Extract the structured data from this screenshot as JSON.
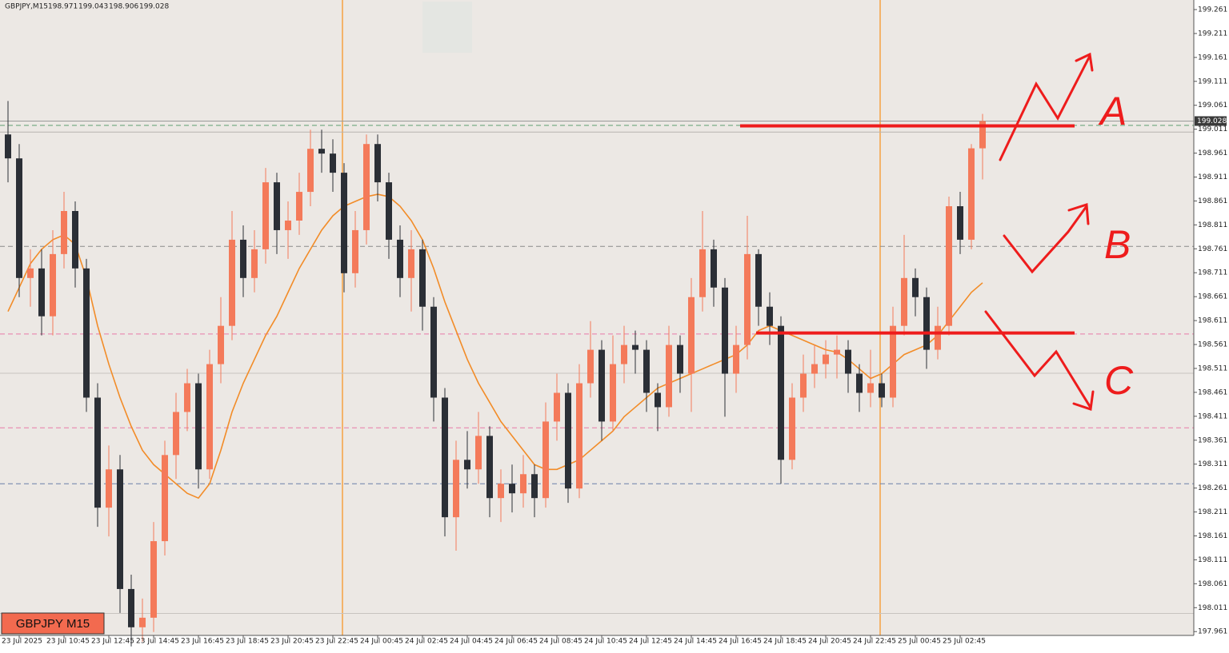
{
  "chart_data": {
    "type": "candlestick",
    "symbol": "GBPJPY,M15",
    "label": "GBPJPY M15",
    "bull_color": "#f47a5a",
    "bear_color": "#2b2f36",
    "categories": [
      null,
      "23 Jul 2025",
      null,
      null,
      null,
      "23 Jul 10:45",
      null,
      null,
      null,
      "23 Jul 12:45",
      null,
      null,
      null,
      "23 Jul 14:45",
      null,
      null,
      null,
      "23 Jul 16:45",
      null,
      null,
      null,
      "23 Jul 18:45",
      null,
      null,
      null,
      "23 Jul 20:45",
      null,
      null,
      null,
      "23 Jul 22:45",
      null,
      null,
      null,
      "24 Jul 00:45",
      null,
      null,
      null,
      "24 Jul 02:45",
      null,
      null,
      null,
      "24 Jul 04:45",
      null,
      null,
      null,
      "24 Jul 06:45",
      null,
      null,
      null,
      "24 Jul 08:45",
      null,
      null,
      null,
      "24 Jul 10:45",
      null,
      null,
      null,
      "24 Jul 12:45",
      null,
      null,
      null,
      "24 Jul 14:45",
      null,
      null,
      null,
      "24 Jul 16:45",
      null,
      null,
      null,
      "24 Jul 18:45",
      null,
      null,
      null,
      "24 Jul 20:45",
      null,
      null,
      null,
      "24 Jul 22:45",
      null,
      null,
      null,
      "25 Jul 00:45",
      null,
      null,
      null,
      "25 Jul 02:45",
      null,
      null
    ],
    "open": [
      199.0,
      198.95,
      198.7,
      198.72,
      198.62,
      198.75,
      198.84,
      198.72,
      198.45,
      198.22,
      198.3,
      198.05,
      197.97,
      197.99,
      198.15,
      198.33,
      198.42,
      198.48,
      198.3,
      198.52,
      198.6,
      198.78,
      198.7,
      198.76,
      198.9,
      198.8,
      198.82,
      198.88,
      198.97,
      198.96,
      198.92,
      198.71,
      198.8,
      198.98,
      198.9,
      198.78,
      198.7,
      198.76,
      198.64,
      198.45,
      198.2,
      198.32,
      198.3,
      198.37,
      198.24,
      198.27,
      198.25,
      198.29,
      198.24,
      198.4,
      198.46,
      198.26,
      198.48,
      198.55,
      198.4,
      198.52,
      198.56,
      198.55,
      198.46,
      198.43,
      198.56,
      198.5,
      198.66,
      198.76,
      198.68,
      198.5,
      198.56,
      198.75,
      198.64,
      198.6,
      198.32,
      198.45,
      198.5,
      198.52,
      198.54,
      198.55,
      198.5,
      198.46,
      198.48,
      198.45,
      198.6,
      198.7,
      198.66,
      198.55,
      198.6,
      198.85,
      198.78,
      198.971
    ],
    "high": [
      199.07,
      198.98,
      198.76,
      198.76,
      198.8,
      198.88,
      198.86,
      198.74,
      198.48,
      198.35,
      198.33,
      198.08,
      198.03,
      198.19,
      198.36,
      198.46,
      198.51,
      198.5,
      198.55,
      198.66,
      198.84,
      198.81,
      198.8,
      198.93,
      198.92,
      198.86,
      198.92,
      199.01,
      199.01,
      198.99,
      198.94,
      198.84,
      199.0,
      199.0,
      198.92,
      198.81,
      198.8,
      198.78,
      198.66,
      198.47,
      198.36,
      198.38,
      198.42,
      198.39,
      198.3,
      198.31,
      198.33,
      198.31,
      198.44,
      198.5,
      198.48,
      198.52,
      198.61,
      198.57,
      198.58,
      198.6,
      198.59,
      198.57,
      198.48,
      198.6,
      198.58,
      198.7,
      198.84,
      198.78,
      198.7,
      198.6,
      198.83,
      198.76,
      198.67,
      198.62,
      198.48,
      198.54,
      198.56,
      198.57,
      198.58,
      198.57,
      198.52,
      198.55,
      198.5,
      198.64,
      198.79,
      198.72,
      198.68,
      198.64,
      198.87,
      198.88,
      198.98,
      199.043
    ],
    "low": [
      198.9,
      198.66,
      198.64,
      198.58,
      198.58,
      198.72,
      198.68,
      198.42,
      198.18,
      198.16,
      198.0,
      197.93,
      197.94,
      197.96,
      198.12,
      198.28,
      198.38,
      198.26,
      198.28,
      198.48,
      198.57,
      198.66,
      198.67,
      198.73,
      198.75,
      198.74,
      198.79,
      198.85,
      198.92,
      198.88,
      198.67,
      198.68,
      198.77,
      198.86,
      198.74,
      198.66,
      198.63,
      198.59,
      198.4,
      198.16,
      198.13,
      198.26,
      198.27,
      198.2,
      198.19,
      198.21,
      198.22,
      198.2,
      198.22,
      198.36,
      198.23,
      198.24,
      198.45,
      198.36,
      198.38,
      198.48,
      198.5,
      198.42,
      198.38,
      198.41,
      198.46,
      198.42,
      198.63,
      198.64,
      198.41,
      198.46,
      198.53,
      198.6,
      198.56,
      198.27,
      198.3,
      198.42,
      198.47,
      198.49,
      198.49,
      198.46,
      198.42,
      198.43,
      198.43,
      198.43,
      198.58,
      198.62,
      198.51,
      198.53,
      198.58,
      198.75,
      198.76,
      198.906
    ],
    "close": [
      198.95,
      198.7,
      198.72,
      198.62,
      198.75,
      198.84,
      198.72,
      198.45,
      198.22,
      198.3,
      198.05,
      197.97,
      197.99,
      198.15,
      198.33,
      198.42,
      198.48,
      198.3,
      198.52,
      198.6,
      198.78,
      198.7,
      198.76,
      198.9,
      198.8,
      198.82,
      198.88,
      198.97,
      198.96,
      198.92,
      198.71,
      198.8,
      198.98,
      198.9,
      198.78,
      198.7,
      198.76,
      198.64,
      198.45,
      198.2,
      198.32,
      198.3,
      198.37,
      198.24,
      198.27,
      198.25,
      198.29,
      198.24,
      198.4,
      198.46,
      198.26,
      198.48,
      198.55,
      198.4,
      198.52,
      198.56,
      198.55,
      198.46,
      198.43,
      198.56,
      198.5,
      198.66,
      198.76,
      198.68,
      198.5,
      198.56,
      198.75,
      198.64,
      198.6,
      198.32,
      198.45,
      198.5,
      198.52,
      198.54,
      198.55,
      198.5,
      198.46,
      198.48,
      198.45,
      198.6,
      198.7,
      198.66,
      198.55,
      198.6,
      198.85,
      198.78,
      198.971,
      199.028
    ],
    "overlays": [
      {
        "color": "#f28c28",
        "values": [
          198.63,
          198.68,
          198.73,
          198.76,
          198.78,
          198.79,
          198.77,
          198.7,
          198.6,
          198.52,
          198.45,
          198.39,
          198.34,
          198.31,
          198.29,
          198.27,
          198.25,
          198.24,
          198.27,
          198.34,
          198.42,
          198.48,
          198.53,
          198.58,
          198.62,
          198.67,
          198.72,
          198.76,
          198.8,
          198.83,
          198.85,
          198.86,
          198.87,
          198.875,
          198.87,
          198.85,
          198.82,
          198.78,
          198.72,
          198.65,
          198.59,
          198.53,
          198.48,
          198.44,
          198.4,
          198.37,
          198.34,
          198.31,
          198.3,
          198.3,
          198.31,
          198.32,
          198.34,
          198.36,
          198.38,
          198.41,
          198.43,
          198.45,
          198.47,
          198.48,
          198.49,
          198.5,
          198.51,
          198.52,
          198.53,
          198.54,
          198.56,
          198.59,
          198.6,
          198.59,
          198.58,
          198.57,
          198.56,
          198.55,
          198.545,
          198.53,
          198.51,
          198.49,
          198.5,
          198.52,
          198.54,
          198.55,
          198.56,
          198.58,
          198.61,
          198.64,
          198.67,
          198.69
        ]
      }
    ],
    "levels": [
      {
        "value": 199.019,
        "color": "#5e9e72",
        "style": "dashed"
      },
      {
        "value": 199.005,
        "color": "#b8b4b0",
        "style": "solid"
      },
      {
        "value": 198.766,
        "color": "#8a8a8a",
        "style": "dashed"
      },
      {
        "value": 198.583,
        "color": "#e87aa8",
        "style": "dashed"
      },
      {
        "value": 198.501,
        "color": "#c8c4c0",
        "style": "solid"
      },
      {
        "value": 198.387,
        "color": "#e87aa8",
        "style": "dashed"
      },
      {
        "value": 198.27,
        "color": "#6a7fa8",
        "style": "dashed"
      },
      {
        "value": 197.999,
        "color": "#c8c4c0",
        "style": "solid"
      }
    ],
    "marker_levels": [
      199.018,
      198.585
    ],
    "scenario_labels": [
      "A",
      "B",
      "C"
    ],
    "ylim": [
      197.953,
      199.281
    ],
    "yticks": [
      199.261,
      199.211,
      199.161,
      199.111,
      199.061,
      199.011,
      198.961,
      198.911,
      198.861,
      198.811,
      198.761,
      198.711,
      198.661,
      198.611,
      198.561,
      198.511,
      198.461,
      198.411,
      198.361,
      198.311,
      198.261,
      198.211,
      198.161,
      198.111,
      198.061,
      198.011,
      197.961
    ]
  }
}
